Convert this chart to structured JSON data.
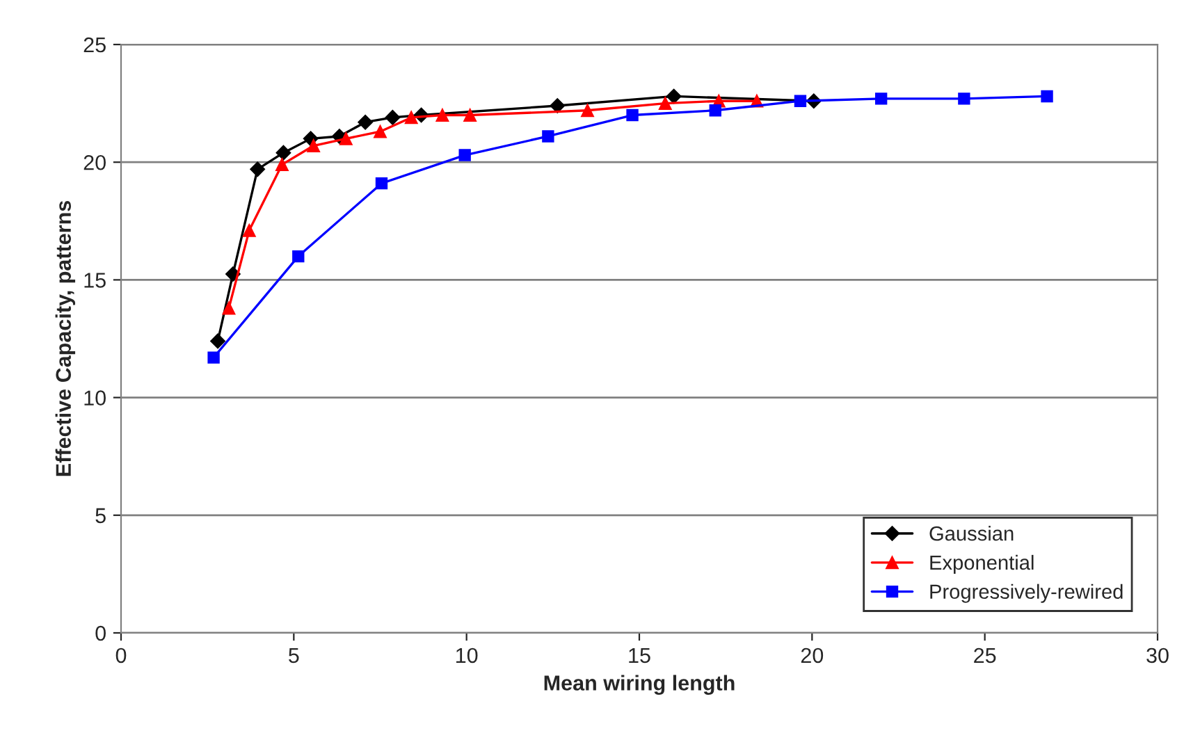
{
  "chart_data": {
    "type": "line",
    "xlabel": "Mean wiring length",
    "ylabel": "Effective Capacity, patterns",
    "xlim": [
      0,
      30
    ],
    "xticks": [
      0,
      5,
      10,
      15,
      20,
      25,
      30
    ],
    "ylim": [
      0,
      25
    ],
    "yticks": [
      0,
      5,
      10,
      15,
      20,
      25
    ],
    "grid": "y",
    "legend": "bottom right",
    "series": [
      {
        "name": "Gaussian",
        "color": "#000000",
        "marker": "diamond",
        "x": [
          2.8,
          3.24,
          3.95,
          4.7,
          5.49,
          6.32,
          7.07,
          7.86,
          8.69,
          12.63,
          16.0,
          20.05
        ],
        "values": [
          12.4,
          15.25,
          19.7,
          20.4,
          21.0,
          21.1,
          21.7,
          21.9,
          22.0,
          22.4,
          22.8,
          22.6
        ]
      },
      {
        "name": "Exponential",
        "color": "#ff0000",
        "marker": "triangle",
        "x": [
          3.12,
          3.71,
          4.66,
          5.57,
          6.51,
          7.5,
          8.4,
          9.3,
          10.1,
          13.5,
          15.75,
          17.3,
          18.4
        ],
        "values": [
          13.8,
          17.1,
          19.9,
          20.7,
          21.0,
          21.3,
          21.9,
          22.0,
          22.0,
          22.2,
          22.5,
          22.6,
          22.6
        ]
      },
      {
        "name": "Progressively-rewired",
        "color": "#0000ff",
        "marker": "square",
        "x": [
          2.68,
          5.13,
          7.54,
          9.95,
          12.36,
          14.8,
          17.2,
          19.66,
          22.0,
          24.4,
          26.8
        ],
        "values": [
          11.7,
          16.0,
          19.1,
          20.3,
          21.1,
          22.0,
          22.2,
          22.6,
          22.7,
          22.7,
          22.8
        ]
      }
    ]
  }
}
